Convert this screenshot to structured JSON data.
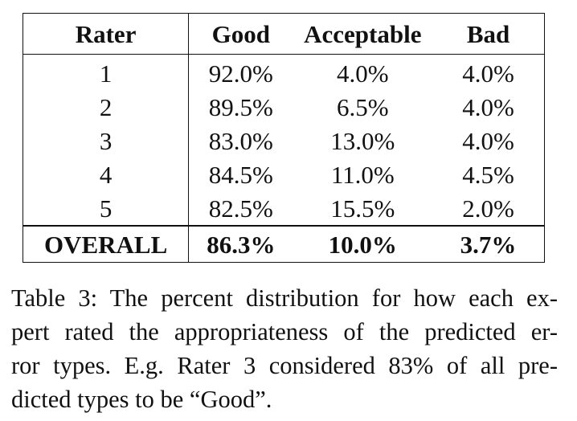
{
  "table": {
    "headers": [
      "Rater",
      "Good",
      "Acceptable",
      "Bad"
    ],
    "rows": [
      [
        "1",
        "92.0%",
        "4.0%",
        "4.0%"
      ],
      [
        "2",
        "89.5%",
        "6.5%",
        "4.0%"
      ],
      [
        "3",
        "83.0%",
        "13.0%",
        "4.0%"
      ],
      [
        "4",
        "84.5%",
        "11.0%",
        "4.5%"
      ],
      [
        "5",
        "82.5%",
        "15.5%",
        "2.0%"
      ]
    ],
    "overall": [
      "OVERALL",
      "86.3%",
      "10.0%",
      "3.7%"
    ]
  },
  "caption": {
    "lines": [
      "Table 3: The percent distribution for how each ex-",
      "pert rated the appropriateness of the predicted er-",
      "ror types. E.g. Rater 3 considered 83% of all pre-",
      "dicted types to be “Good”."
    ]
  }
}
